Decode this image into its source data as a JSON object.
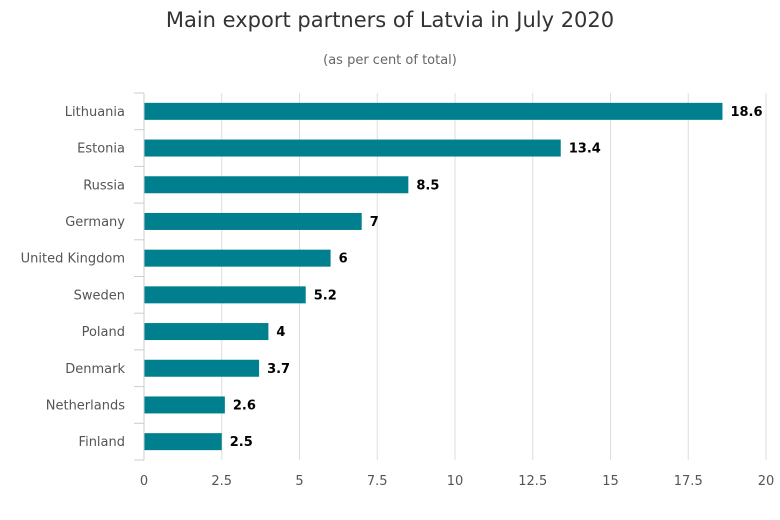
{
  "chart_data": {
    "type": "bar",
    "orientation": "horizontal",
    "title": "Main export partners of Latvia in July 2020",
    "subtitle": "(as per cent of total)",
    "xlabel": "",
    "ylabel": "",
    "categories": [
      "Lithuania",
      "Estonia",
      "Russia",
      "Germany",
      "United Kingdom",
      "Sweden",
      "Poland",
      "Denmark",
      "Netherlands",
      "Finland"
    ],
    "values": [
      18.6,
      13.4,
      8.5,
      7,
      6,
      5.2,
      4,
      3.7,
      2.6,
      2.5
    ],
    "value_labels": [
      "18.6",
      "13.4",
      "8.5",
      "7",
      "6",
      "5.2",
      "4",
      "3.7",
      "2.6",
      "2.5"
    ],
    "xlim": [
      0,
      20
    ],
    "ticks": [
      0,
      2.5,
      5,
      7.5,
      10,
      12.5,
      15,
      17.5,
      20
    ],
    "tick_labels": [
      "0",
      "2.5",
      "5",
      "7.5",
      "10",
      "12.5",
      "15",
      "17.5",
      "20"
    ],
    "grid": true,
    "legend": false,
    "bar_color": "#00808f",
    "grid_color": "#dddddd",
    "axis_color": "#cccccc"
  }
}
